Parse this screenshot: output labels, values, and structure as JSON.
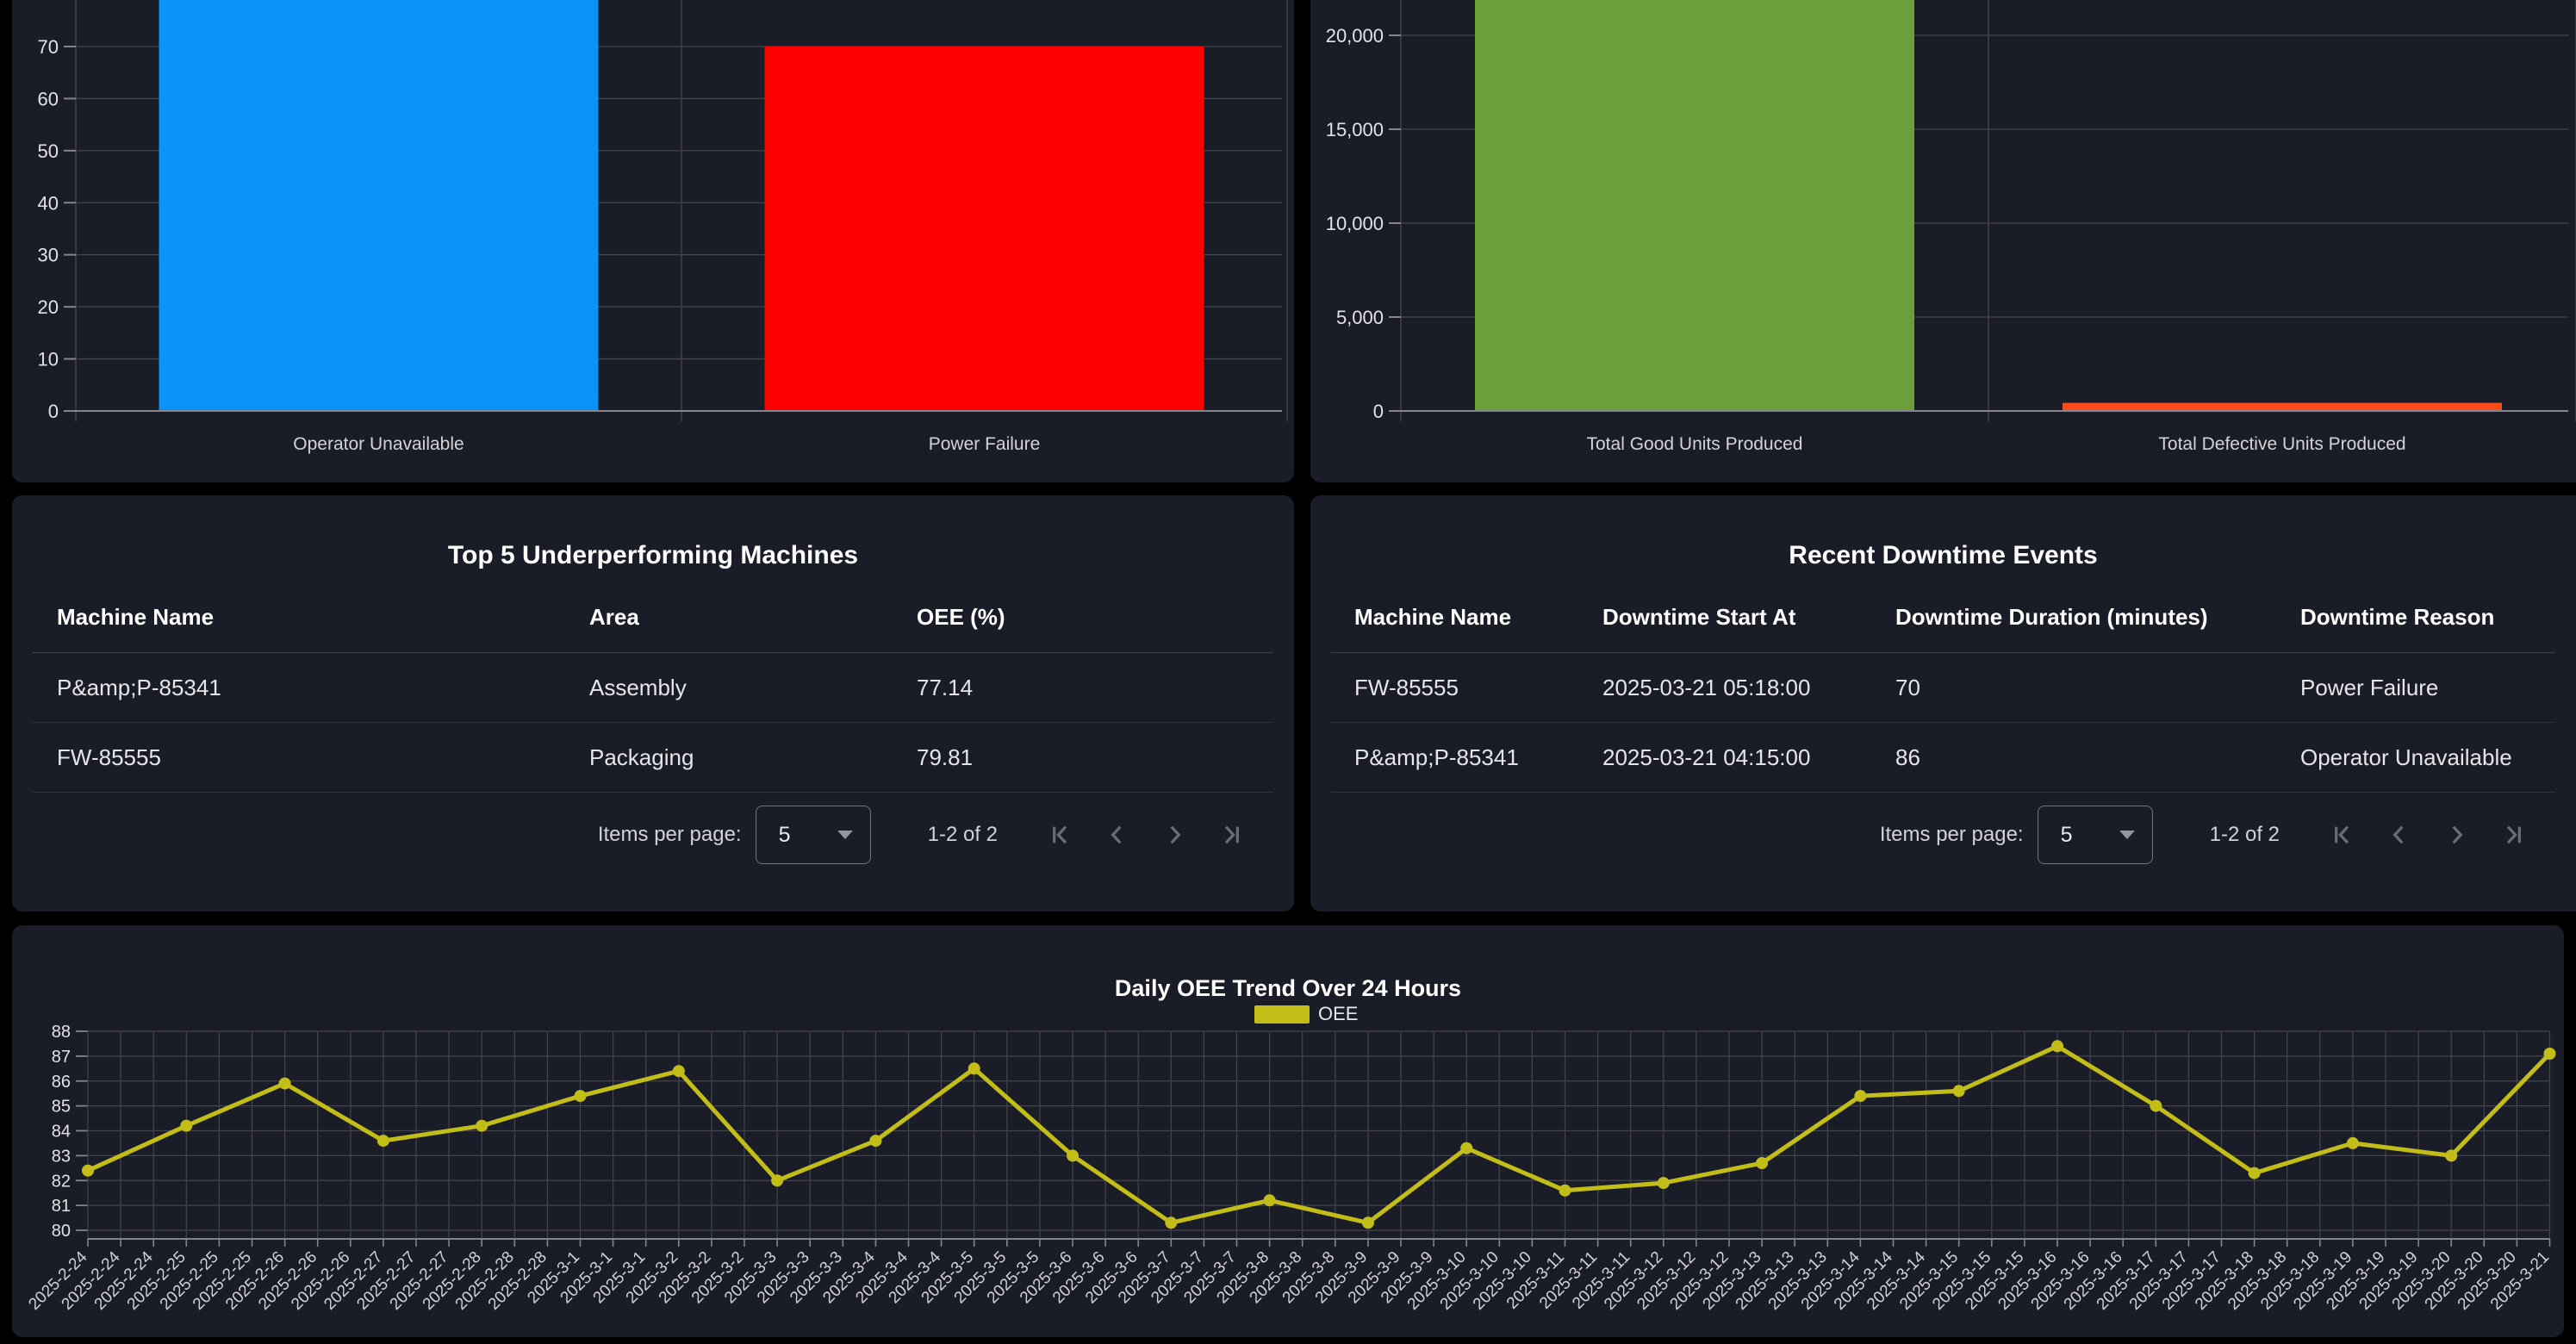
{
  "theme": {
    "page_bg": "#000000",
    "panel_bg": "#1a1d27",
    "grid_color": "#44444c",
    "axis_color": "#84848b",
    "text_color": "#e2e3e5"
  },
  "paginator": {
    "items_per_page_label": "Items per page:",
    "page_size": "5",
    "range_label": "1-2 of 2"
  },
  "tables": {
    "underperforming": {
      "title": "Top 5 Underperforming Machines",
      "columns": [
        "Machine Name",
        "Area",
        "OEE (%)"
      ],
      "rows": [
        [
          "P&amp;P-85341",
          "Assembly",
          "77.14"
        ],
        [
          "FW-85555",
          "Packaging",
          "79.81"
        ]
      ]
    },
    "downtime_events": {
      "title": "Recent Downtime Events",
      "columns": [
        "Machine Name",
        "Downtime Start At",
        "Downtime Duration (minutes)",
        "Downtime Reason"
      ],
      "rows": [
        [
          "FW-85555",
          "2025-03-21 05:18:00",
          "70",
          "Power Failure"
        ],
        [
          "P&amp;P-85341",
          "2025-03-21 04:15:00",
          "86",
          "Operator Unavailable"
        ]
      ]
    }
  },
  "chart_data": [
    {
      "id": "downtime_by_reason",
      "type": "bar",
      "categories": [
        "Operator Unavailable",
        "Power Failure"
      ],
      "values": [
        86,
        70
      ],
      "colors": [
        "#0b94f7",
        "#ff0000"
      ],
      "y_ticks": [
        0,
        10,
        20,
        30,
        40,
        50,
        60,
        70
      ],
      "y_tick_labels": [
        "0",
        "10",
        "20",
        "30",
        "40",
        "50",
        "60",
        "70"
      ],
      "ylim": [
        0,
        79
      ],
      "grid": true,
      "top_cut_off": true
    },
    {
      "id": "production_units",
      "type": "bar",
      "categories": [
        "Total Good Units Produced",
        "Total Defective Units Produced"
      ],
      "values": [
        21900,
        430
      ],
      "colors": [
        "#6a9f3a",
        "#ff4a1c"
      ],
      "y_ticks": [
        0,
        5000,
        10000,
        15000,
        20000
      ],
      "y_tick_labels": [
        "0",
        "5,000",
        "10,000",
        "15,000",
        "20,000"
      ],
      "ylim": [
        0,
        21900
      ],
      "grid": true,
      "top_cut_off": true
    },
    {
      "id": "oee_trend",
      "type": "line",
      "title": "Daily OEE Trend Over 24 Hours",
      "legend": "OEE",
      "color": "#c3bd18",
      "x": [
        "2025-2-24",
        "2025-2-25",
        "2025-2-26",
        "2025-2-27",
        "2025-2-28",
        "2025-3-1",
        "2025-3-2",
        "2025-3-3",
        "2025-3-4",
        "2025-3-5",
        "2025-3-6",
        "2025-3-7",
        "2025-3-8",
        "2025-3-9",
        "2025-3-10",
        "2025-3-11",
        "2025-3-12",
        "2025-3-13",
        "2025-3-14",
        "2025-3-15",
        "2025-3-16",
        "2025-3-17",
        "2025-3-18",
        "2025-3-19",
        "2025-3-20",
        "2025-3-21"
      ],
      "values": [
        82.4,
        84.2,
        85.9,
        83.6,
        84.2,
        85.4,
        86.4,
        82.0,
        83.6,
        86.5,
        83.0,
        80.3,
        81.2,
        80.3,
        83.3,
        81.6,
        81.9,
        82.7,
        85.4,
        85.6,
        87.4,
        85.0,
        82.3,
        83.5,
        83.0,
        87.1
      ],
      "x_label_repeat": 3,
      "y_ticks": [
        80,
        81,
        82,
        83,
        84,
        85,
        86,
        87,
        88
      ],
      "y_tick_labels": [
        "80",
        "81",
        "82",
        "83",
        "84",
        "85",
        "86",
        "87",
        "88"
      ],
      "ylim": [
        79.6,
        88
      ],
      "grid": true,
      "legend_position": "top-center"
    }
  ]
}
